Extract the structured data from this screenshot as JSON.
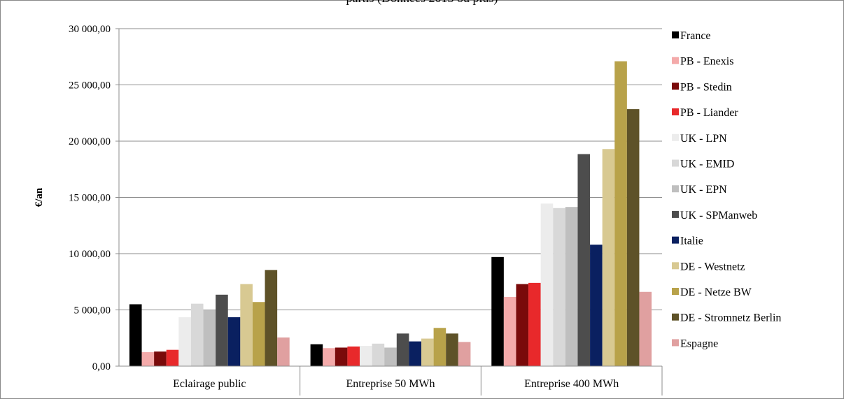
{
  "chart_data": {
    "type": "bar",
    "title": "",
    "xlabel": "",
    "ylabel": "€/an",
    "ylim": [
      0,
      30000
    ],
    "yticks": [
      0,
      5000,
      10000,
      15000,
      20000,
      25000,
      30000
    ],
    "ytick_labels": [
      "0,00",
      "5 000,00",
      "10 000,00",
      "15 000,00",
      "20 000,00",
      "25 000,00",
      "30 000,00"
    ],
    "grid": "horizontal",
    "legend_position": "right",
    "categories": [
      "Eclairage public",
      "Entreprise 50 MWh",
      "Entreprise 400 MWh"
    ],
    "series": [
      {
        "name": "France",
        "color": "#000000",
        "values": [
          5500,
          1950,
          9700
        ]
      },
      {
        "name": "PB - Enexis",
        "color": "#f4aaaa",
        "values": [
          1250,
          1600,
          6150
        ]
      },
      {
        "name": "PB - Stedin",
        "color": "#7a0a0a",
        "values": [
          1300,
          1650,
          7300
        ]
      },
      {
        "name": "PB - Liander",
        "color": "#e8292b",
        "values": [
          1450,
          1750,
          7400
        ]
      },
      {
        "name": "UK - LPN",
        "color": "#ececec",
        "values": [
          4350,
          1800,
          14450
        ]
      },
      {
        "name": "UK - EMID",
        "color": "#d8d8d8",
        "values": [
          5550,
          2000,
          14050
        ]
      },
      {
        "name": "UK - EPN",
        "color": "#bfbfbf",
        "values": [
          5000,
          1650,
          14150
        ]
      },
      {
        "name": "UK - SPManweb",
        "color": "#4d4d4d",
        "values": [
          6350,
          2900,
          18850
        ]
      },
      {
        "name": "Italie",
        "color": "#0a2060",
        "values": [
          4350,
          2200,
          10800
        ]
      },
      {
        "name": "DE - Westnetz",
        "color": "#d8c992",
        "values": [
          7300,
          2450,
          19300
        ]
      },
      {
        "name": "DE - Netze BW",
        "color": "#b8a24a",
        "values": [
          5700,
          3400,
          27100
        ]
      },
      {
        "name": "DE - Stromnetz Berlin",
        "color": "#5e5228",
        "values": [
          8550,
          2900,
          22850
        ]
      },
      {
        "name": "Espagne",
        "color": "#e0a0a0",
        "values": [
          2550,
          2150,
          6600
        ]
      }
    ]
  },
  "header": {
    "visible_title_fragment": "partis (Données 2013 ou plus)"
  }
}
